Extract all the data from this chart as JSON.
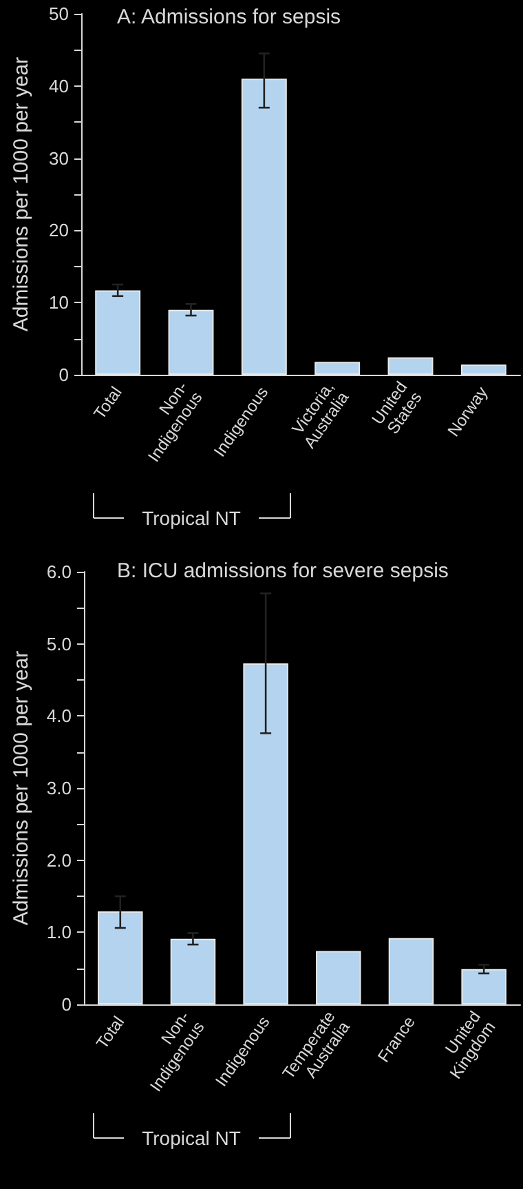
{
  "chart_data": [
    {
      "type": "bar",
      "title": "A: Admissions for sepsis",
      "ylabel": "Admissions per 1000 per year",
      "categories": [
        "Total",
        "Non-Indigenous",
        "Indigenous",
        "Victoria, Australia",
        "United States",
        "Norway"
      ],
      "values": [
        11.7,
        9.0,
        41.0,
        1.8,
        2.4,
        1.4
      ],
      "color": "#b3d3ee",
      "errors": [
        [
          10.9,
          12.5
        ],
        [
          8.2,
          9.8
        ],
        [
          37.0,
          44.5
        ],
        null,
        null,
        null
      ],
      "ylim": [
        0,
        50
      ],
      "yticks": [
        0,
        {
          "value": 5,
          "label": null
        },
        10,
        {
          "value": 15,
          "label": null
        },
        20,
        {
          "value": 25,
          "label": null
        },
        30,
        {
          "value": 35,
          "label": null
        },
        40,
        {
          "value": 45,
          "label": null
        },
        50
      ],
      "annotations": [
        "Tropical NT"
      ]
    },
    {
      "type": "bar",
      "title": "B: ICU admissions for severe sepsis",
      "ylabel": "Admissions per 1000 per year",
      "categories": [
        "Total",
        "Non-Indigenous",
        "Indigenous",
        "Temperate Australia",
        "France",
        "United Kingdom"
      ],
      "values": [
        1.29,
        0.91,
        4.73,
        0.74,
        0.92,
        0.49
      ],
      "color": "#b3d3ee",
      "errors": [
        [
          1.06,
          1.5
        ],
        [
          0.83,
          0.99
        ],
        [
          3.76,
          5.7
        ],
        null,
        null,
        [
          0.43,
          0.55
        ]
      ],
      "ylim": [
        0,
        6
      ],
      "yticks": [
        0,
        {
          "value": 0.5,
          "label": null
        },
        {
          "value": 1,
          "label": "1.0"
        },
        {
          "value": 1.5,
          "label": null
        },
        {
          "value": 2,
          "label": "2.0"
        },
        {
          "value": 2.5,
          "label": null
        },
        {
          "value": 3,
          "label": "3.0"
        },
        {
          "value": 3.5,
          "label": null
        },
        {
          "value": 4,
          "label": "4.0"
        },
        {
          "value": 4.5,
          "label": null
        },
        {
          "value": 5,
          "label": "5.0"
        },
        {
          "value": 5.5,
          "label": null
        },
        {
          "value": 6,
          "label": "6.0"
        }
      ],
      "annotations": [
        "Tropical NT"
      ]
    }
  ]
}
